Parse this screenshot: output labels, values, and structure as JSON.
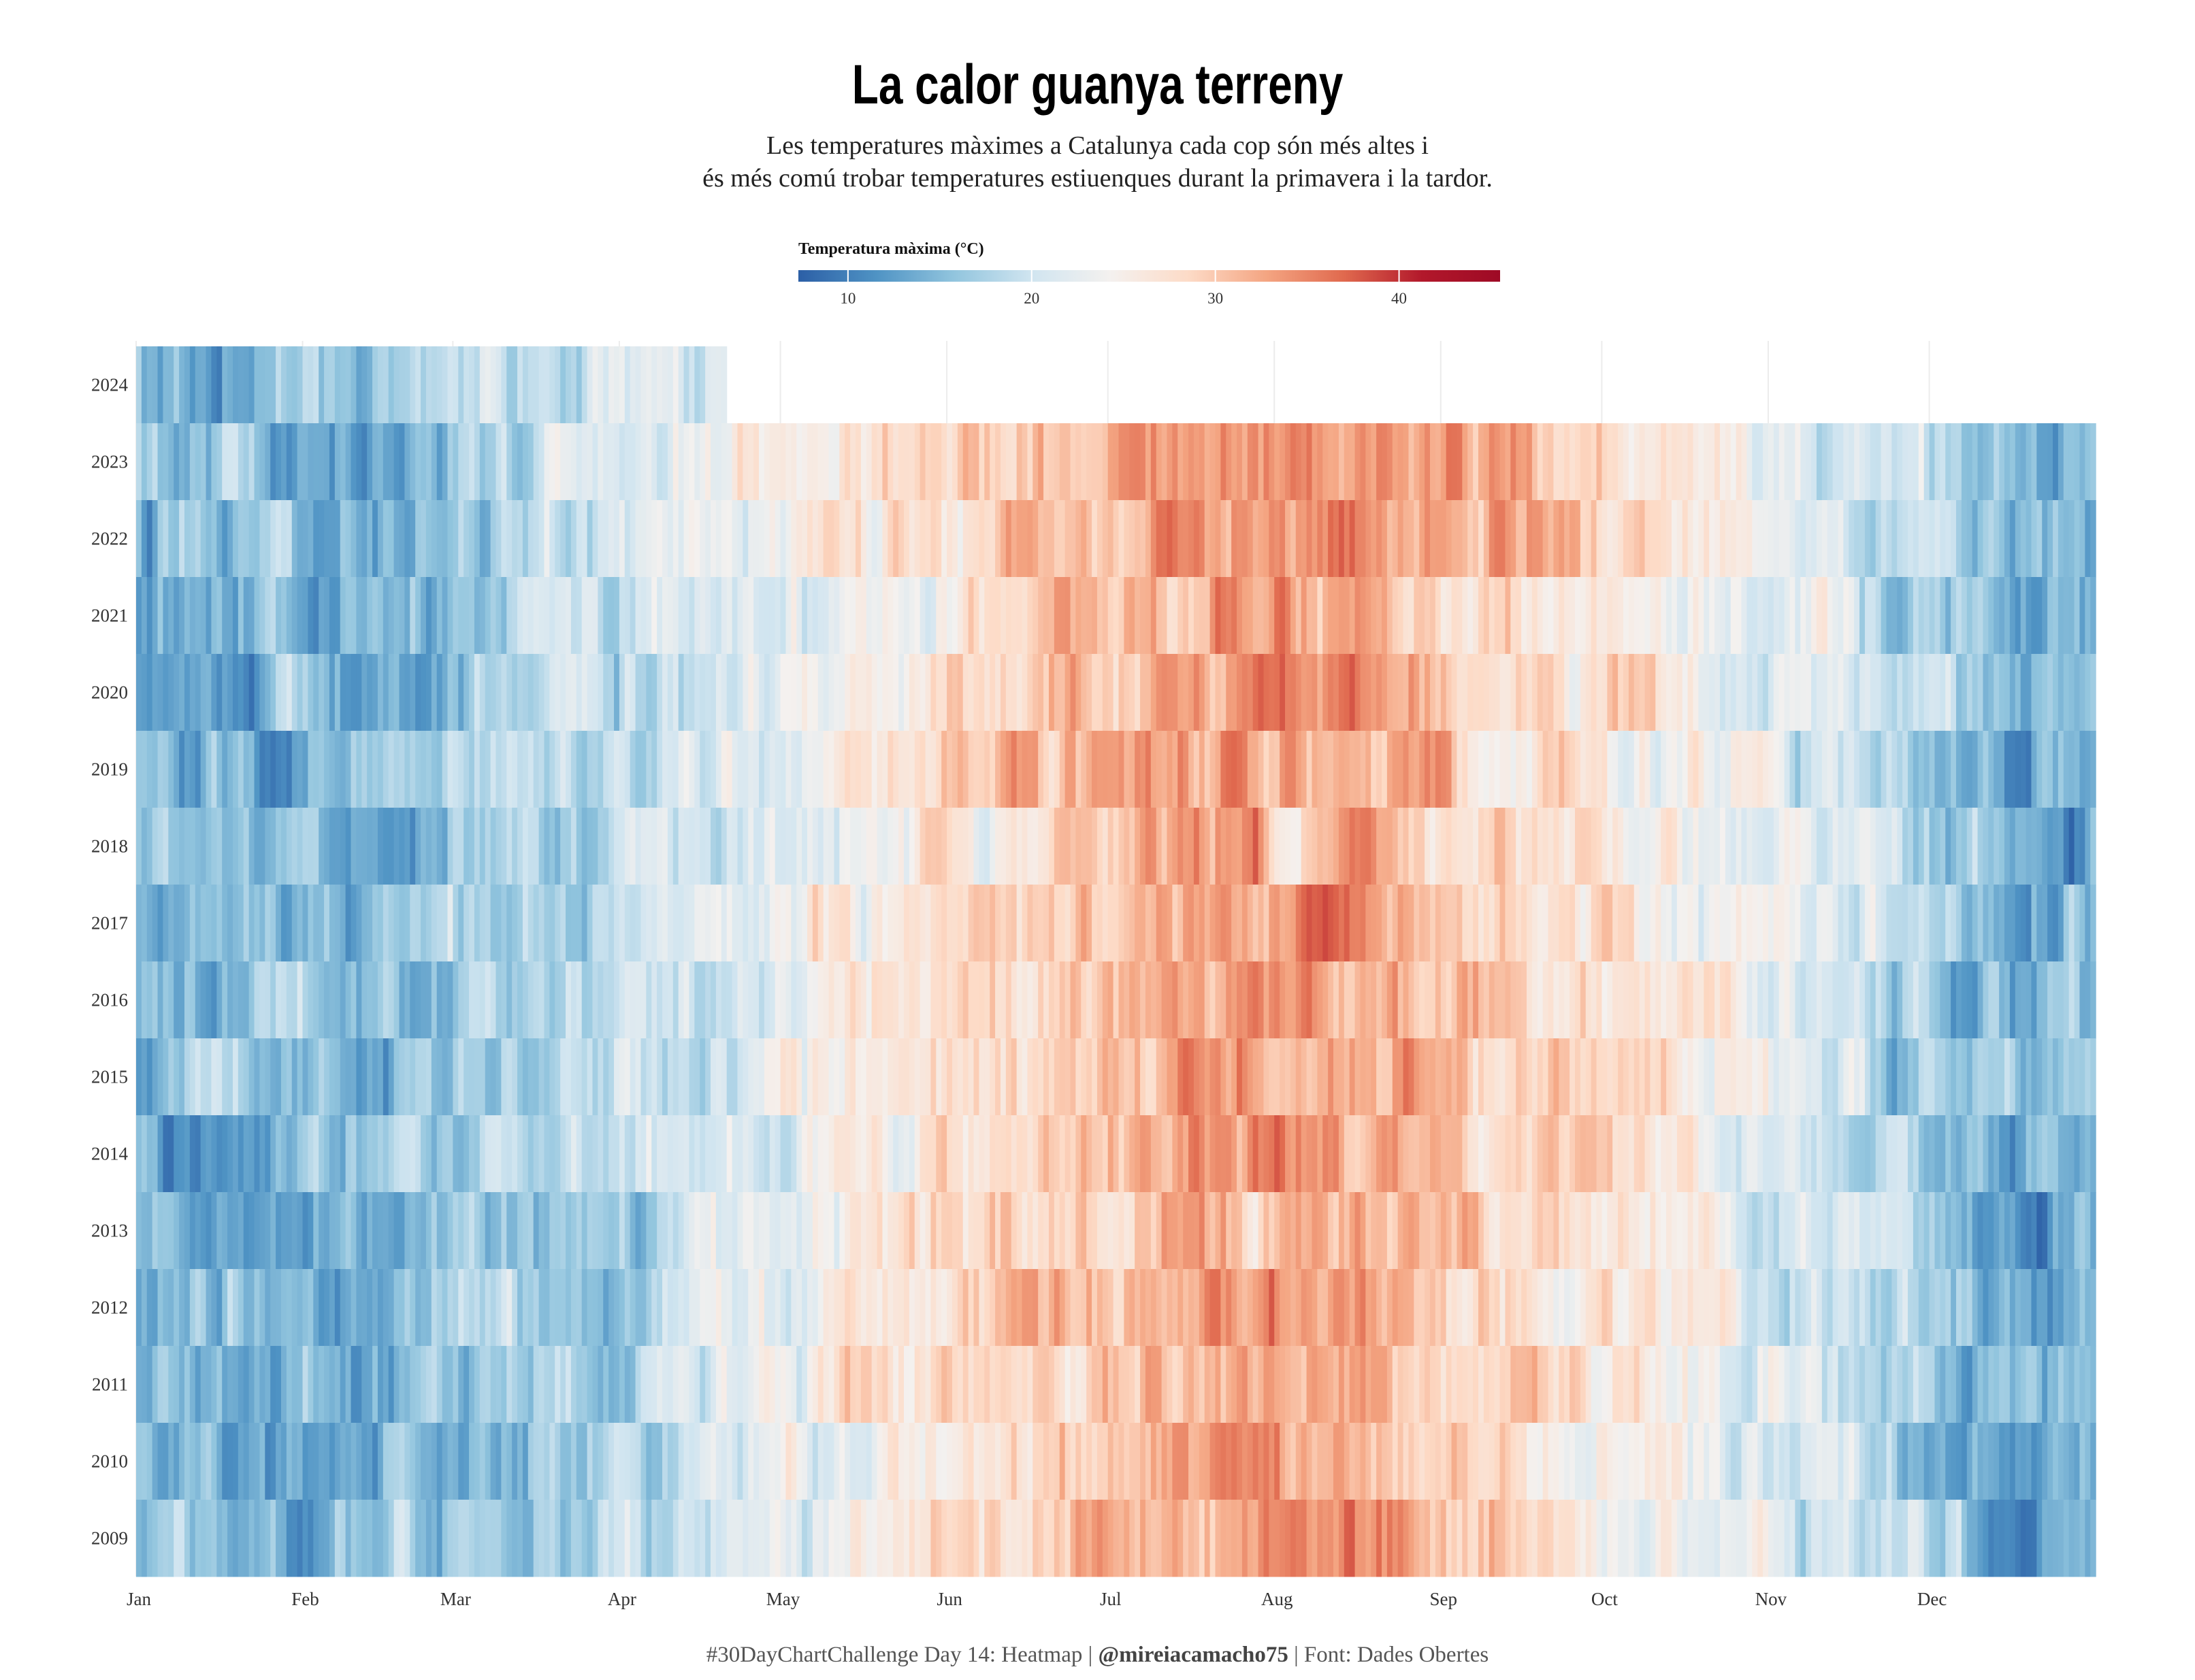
{
  "chart_data": {
    "type": "heatmap",
    "title": "La calor guanya terreny",
    "subtitle": [
      "Les temperatures màximes a Catalunya cada cop són més altes i",
      "és més comú trobar temperatures estiuenques durant la primavera i la tardor."
    ],
    "legend": {
      "title": "Temperatura màxima (°C)",
      "ticks": [
        10,
        20,
        30,
        40
      ],
      "range": [
        7.3,
        45.5
      ],
      "placement": "top-center",
      "colormap": [
        "#2c5fa6",
        "#4f93c4",
        "#92c5de",
        "#d1e5f0",
        "#f4f1ef",
        "#fddbc7",
        "#f4a582",
        "#e0694e",
        "#b2182b",
        "#9e0a25"
      ]
    },
    "years": [
      "2024",
      "2023",
      "2022",
      "2021",
      "2020",
      "2019",
      "2018",
      "2017",
      "2016",
      "2015",
      "2014",
      "2013",
      "2012",
      "2011",
      "2010",
      "2009"
    ],
    "x_ticks": [
      "Jan",
      "Feb",
      "Mar",
      "Apr",
      "May",
      "Jun",
      "Jul",
      "Aug",
      "Sep",
      "Oct",
      "Nov",
      "Dec"
    ],
    "x_tick_days": [
      0,
      31,
      59,
      90,
      120,
      151,
      181,
      212,
      243,
      273,
      304,
      334
    ],
    "monthly_mean_tmax_estimate": [
      14,
      15,
      17.5,
      20.5,
      24.5,
      29,
      32.5,
      32.5,
      28.5,
      24.5,
      19,
      14.5
    ],
    "year_anomaly_estimate": {
      "2009": 0.2,
      "2010": -0.6,
      "2011": 0.4,
      "2012": 0.1,
      "2013": -0.5,
      "2014": 0.3,
      "2015": 0.6,
      "2016": 0.3,
      "2017": 0.8,
      "2018": 0.0,
      "2019": 0.4,
      "2020": 0.5,
      "2021": 0.3,
      "2022": 1.6,
      "2023": 1.6,
      "2024": 1.2
    },
    "last_day_2024": 110,
    "xlabel": "",
    "ylabel": ""
  },
  "footer": {
    "pre": "#30DayChartChallenge Day 14: Heatmap | ",
    "handle": "@mireiacamacho75",
    "post": " | Font: Dades Obertes"
  }
}
